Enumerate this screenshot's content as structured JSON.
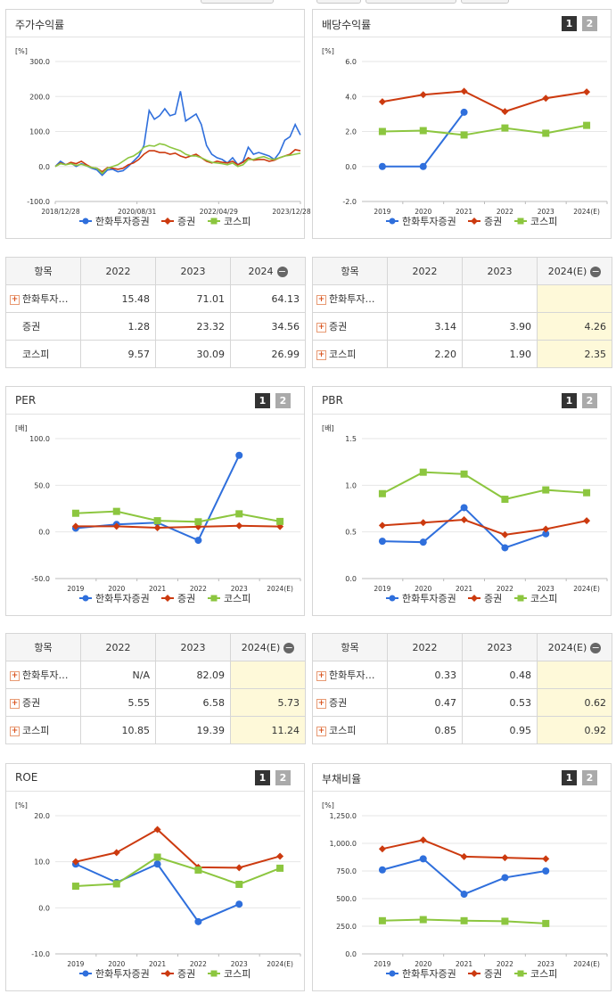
{
  "colors": {
    "hanwha": "#2f6fdc",
    "securities": "#cc3a0f",
    "kospi": "#8cc63f"
  },
  "legend": [
    "한화투자증권",
    "증권",
    "코스피"
  ],
  "panels": {
    "stock": {
      "title": "주가수익률",
      "unit": "[%]"
    },
    "div": {
      "title": "배당수익률",
      "unit": "[%]"
    },
    "per": {
      "title": "PER",
      "unit": "[배]"
    },
    "pbr": {
      "title": "PBR",
      "unit": "[배]"
    },
    "roe": {
      "title": "ROE",
      "unit": "[%]"
    },
    "debt": {
      "title": "부채비율",
      "unit": "[%]"
    }
  },
  "buttons": {
    "one": "1",
    "two": "2"
  },
  "tables": {
    "stock": {
      "header": [
        "항목",
        "2022",
        "2023",
        "2024"
      ],
      "rows": [
        {
          "name": "한화투자…",
          "plus": true,
          "vals": [
            "15.48",
            "71.01",
            "64.13"
          ]
        },
        {
          "name": "증권",
          "plus": false,
          "vals": [
            "1.28",
            "23.32",
            "34.56"
          ]
        },
        {
          "name": "코스피",
          "plus": false,
          "vals": [
            "9.57",
            "30.09",
            "26.99"
          ]
        }
      ]
    },
    "div": {
      "header": [
        "항목",
        "2022",
        "2023",
        "2024(E)"
      ],
      "rows": [
        {
          "name": "한화투자…",
          "plus": true,
          "vals": [
            "",
            "",
            ""
          ]
        },
        {
          "name": "증권",
          "plus": true,
          "vals": [
            "3.14",
            "3.90",
            "4.26"
          ]
        },
        {
          "name": "코스피",
          "plus": true,
          "vals": [
            "2.20",
            "1.90",
            "2.35"
          ]
        }
      ]
    },
    "per": {
      "header": [
        "항목",
        "2022",
        "2023",
        "2024(E)"
      ],
      "rows": [
        {
          "name": "한화투자…",
          "plus": true,
          "vals": [
            "N/A",
            "82.09",
            ""
          ]
        },
        {
          "name": "증권",
          "plus": true,
          "vals": [
            "5.55",
            "6.58",
            "5.73"
          ]
        },
        {
          "name": "코스피",
          "plus": true,
          "vals": [
            "10.85",
            "19.39",
            "11.24"
          ]
        }
      ]
    },
    "pbr": {
      "header": [
        "항목",
        "2022",
        "2023",
        "2024(E)"
      ],
      "rows": [
        {
          "name": "한화투자…",
          "plus": true,
          "vals": [
            "0.33",
            "0.48",
            ""
          ]
        },
        {
          "name": "증권",
          "plus": true,
          "vals": [
            "0.47",
            "0.53",
            "0.62"
          ]
        },
        {
          "name": "코스피",
          "plus": true,
          "vals": [
            "0.85",
            "0.95",
            "0.92"
          ]
        }
      ]
    }
  },
  "chart_data": [
    {
      "id": "stock",
      "type": "line",
      "title": "주가수익률",
      "ylabel": "[%]",
      "ylim": [
        -100,
        300
      ],
      "yticks": [
        "300.0",
        "200.0",
        "100.0",
        "0.0",
        "-100.0"
      ],
      "x_tick_labels": [
        "2018/12/28",
        "2020/08/31",
        "2022/04/29",
        "2023/12/28"
      ],
      "series": [
        {
          "name": "한화투자증권",
          "values": [
            0,
            15,
            5,
            10,
            0,
            8,
            2,
            -5,
            -10,
            -25,
            -10,
            -8,
            -15,
            -12,
            0,
            15,
            30,
            60,
            160,
            135,
            145,
            165,
            145,
            150,
            215,
            130,
            140,
            150,
            120,
            60,
            35,
            25,
            20,
            10,
            25,
            5,
            15,
            55,
            35,
            40,
            35,
            30,
            20,
            40,
            75,
            85,
            120,
            90
          ]
        },
        {
          "name": "증권",
          "values": [
            0,
            10,
            5,
            12,
            8,
            15,
            5,
            -3,
            -5,
            -15,
            -3,
            -5,
            -8,
            -5,
            5,
            10,
            20,
            35,
            45,
            45,
            40,
            40,
            35,
            38,
            30,
            25,
            30,
            35,
            25,
            15,
            10,
            15,
            12,
            10,
            15,
            5,
            12,
            25,
            18,
            20,
            20,
            15,
            18,
            25,
            30,
            35,
            48,
            45
          ]
        },
        {
          "name": "코스피",
          "values": [
            0,
            8,
            5,
            8,
            3,
            6,
            2,
            -3,
            -5,
            -20,
            -5,
            0,
            5,
            15,
            25,
            30,
            40,
            55,
            60,
            58,
            65,
            62,
            55,
            50,
            45,
            35,
            30,
            30,
            25,
            18,
            12,
            10,
            8,
            5,
            10,
            0,
            5,
            20,
            20,
            25,
            28,
            22,
            20,
            25,
            30,
            32,
            35,
            38
          ]
        }
      ]
    },
    {
      "id": "div",
      "type": "line",
      "title": "배당수익률",
      "ylabel": "[%]",
      "categories": [
        "2019",
        "2020",
        "2021",
        "2022",
        "2023",
        "2024(E)"
      ],
      "ylim": [
        -2,
        6
      ],
      "yticks": [
        "6.0",
        "4.0",
        "2.0",
        "0.0",
        "-2.0"
      ],
      "series": [
        {
          "name": "한화투자증권",
          "values": [
            0,
            0,
            3.1,
            null,
            null,
            null
          ]
        },
        {
          "name": "증권",
          "values": [
            3.7,
            4.1,
            4.3,
            3.14,
            3.9,
            4.26
          ]
        },
        {
          "name": "코스피",
          "values": [
            2.0,
            2.05,
            1.8,
            2.2,
            1.9,
            2.35
          ]
        }
      ]
    },
    {
      "id": "per",
      "type": "line",
      "title": "PER",
      "ylabel": "[배]",
      "categories": [
        "2019",
        "2020",
        "2021",
        "2022",
        "2023",
        "2024(E)"
      ],
      "ylim": [
        -50,
        100
      ],
      "yticks": [
        "100.0",
        "50.0",
        "0.0",
        "-50.0"
      ],
      "series": [
        {
          "name": "한화투자증권",
          "values": [
            4,
            8,
            10,
            -9,
            82.09,
            null
          ]
        },
        {
          "name": "증권",
          "values": [
            6,
            6,
            4.5,
            5.55,
            6.58,
            5.73
          ]
        },
        {
          "name": "코스피",
          "values": [
            20,
            22,
            12,
            10.85,
            19.39,
            11.24
          ]
        }
      ]
    },
    {
      "id": "pbr",
      "type": "line",
      "title": "PBR",
      "ylabel": "[배]",
      "categories": [
        "2019",
        "2020",
        "2021",
        "2022",
        "2023",
        "2024(E)"
      ],
      "ylim": [
        0,
        1.5
      ],
      "yticks": [
        "1.5",
        "1.0",
        "0.5",
        "0.0"
      ],
      "series": [
        {
          "name": "한화투자증권",
          "values": [
            0.4,
            0.39,
            0.76,
            0.33,
            0.48,
            null
          ]
        },
        {
          "name": "증권",
          "values": [
            0.57,
            0.6,
            0.63,
            0.47,
            0.53,
            0.62
          ]
        },
        {
          "name": "코스피",
          "values": [
            0.91,
            1.14,
            1.12,
            0.85,
            0.95,
            0.92
          ]
        }
      ]
    },
    {
      "id": "roe",
      "type": "line",
      "title": "ROE",
      "ylabel": "[%]",
      "categories": [
        "2019",
        "2020",
        "2021",
        "2022",
        "2023",
        "2024(E)"
      ],
      "ylim": [
        -10,
        20
      ],
      "yticks": [
        "20.0",
        "10.0",
        "0.0",
        "-10.0"
      ],
      "series": [
        {
          "name": "한화투자증권",
          "values": [
            9.5,
            5.5,
            9.5,
            -3,
            0.8,
            null
          ]
        },
        {
          "name": "증권",
          "values": [
            10,
            12,
            17,
            8.8,
            8.7,
            11.2
          ]
        },
        {
          "name": "코스피",
          "values": [
            4.7,
            5.2,
            11,
            8.2,
            5.1,
            8.6
          ]
        }
      ]
    },
    {
      "id": "debt",
      "type": "line",
      "title": "부채비율",
      "ylabel": "[%]",
      "categories": [
        "2019",
        "2020",
        "2021",
        "2022",
        "2023",
        "2024(E)"
      ],
      "ylim": [
        0,
        1250
      ],
      "yticks": [
        "1,250.0",
        "1,000.0",
        "750.0",
        "500.0",
        "250.0",
        "0.0"
      ],
      "series": [
        {
          "name": "한화투자증권",
          "values": [
            760,
            860,
            540,
            690,
            750,
            null
          ]
        },
        {
          "name": "증권",
          "values": [
            950,
            1030,
            880,
            870,
            860,
            null
          ]
        },
        {
          "name": "코스피",
          "values": [
            300,
            310,
            300,
            295,
            275,
            null
          ]
        }
      ]
    }
  ]
}
